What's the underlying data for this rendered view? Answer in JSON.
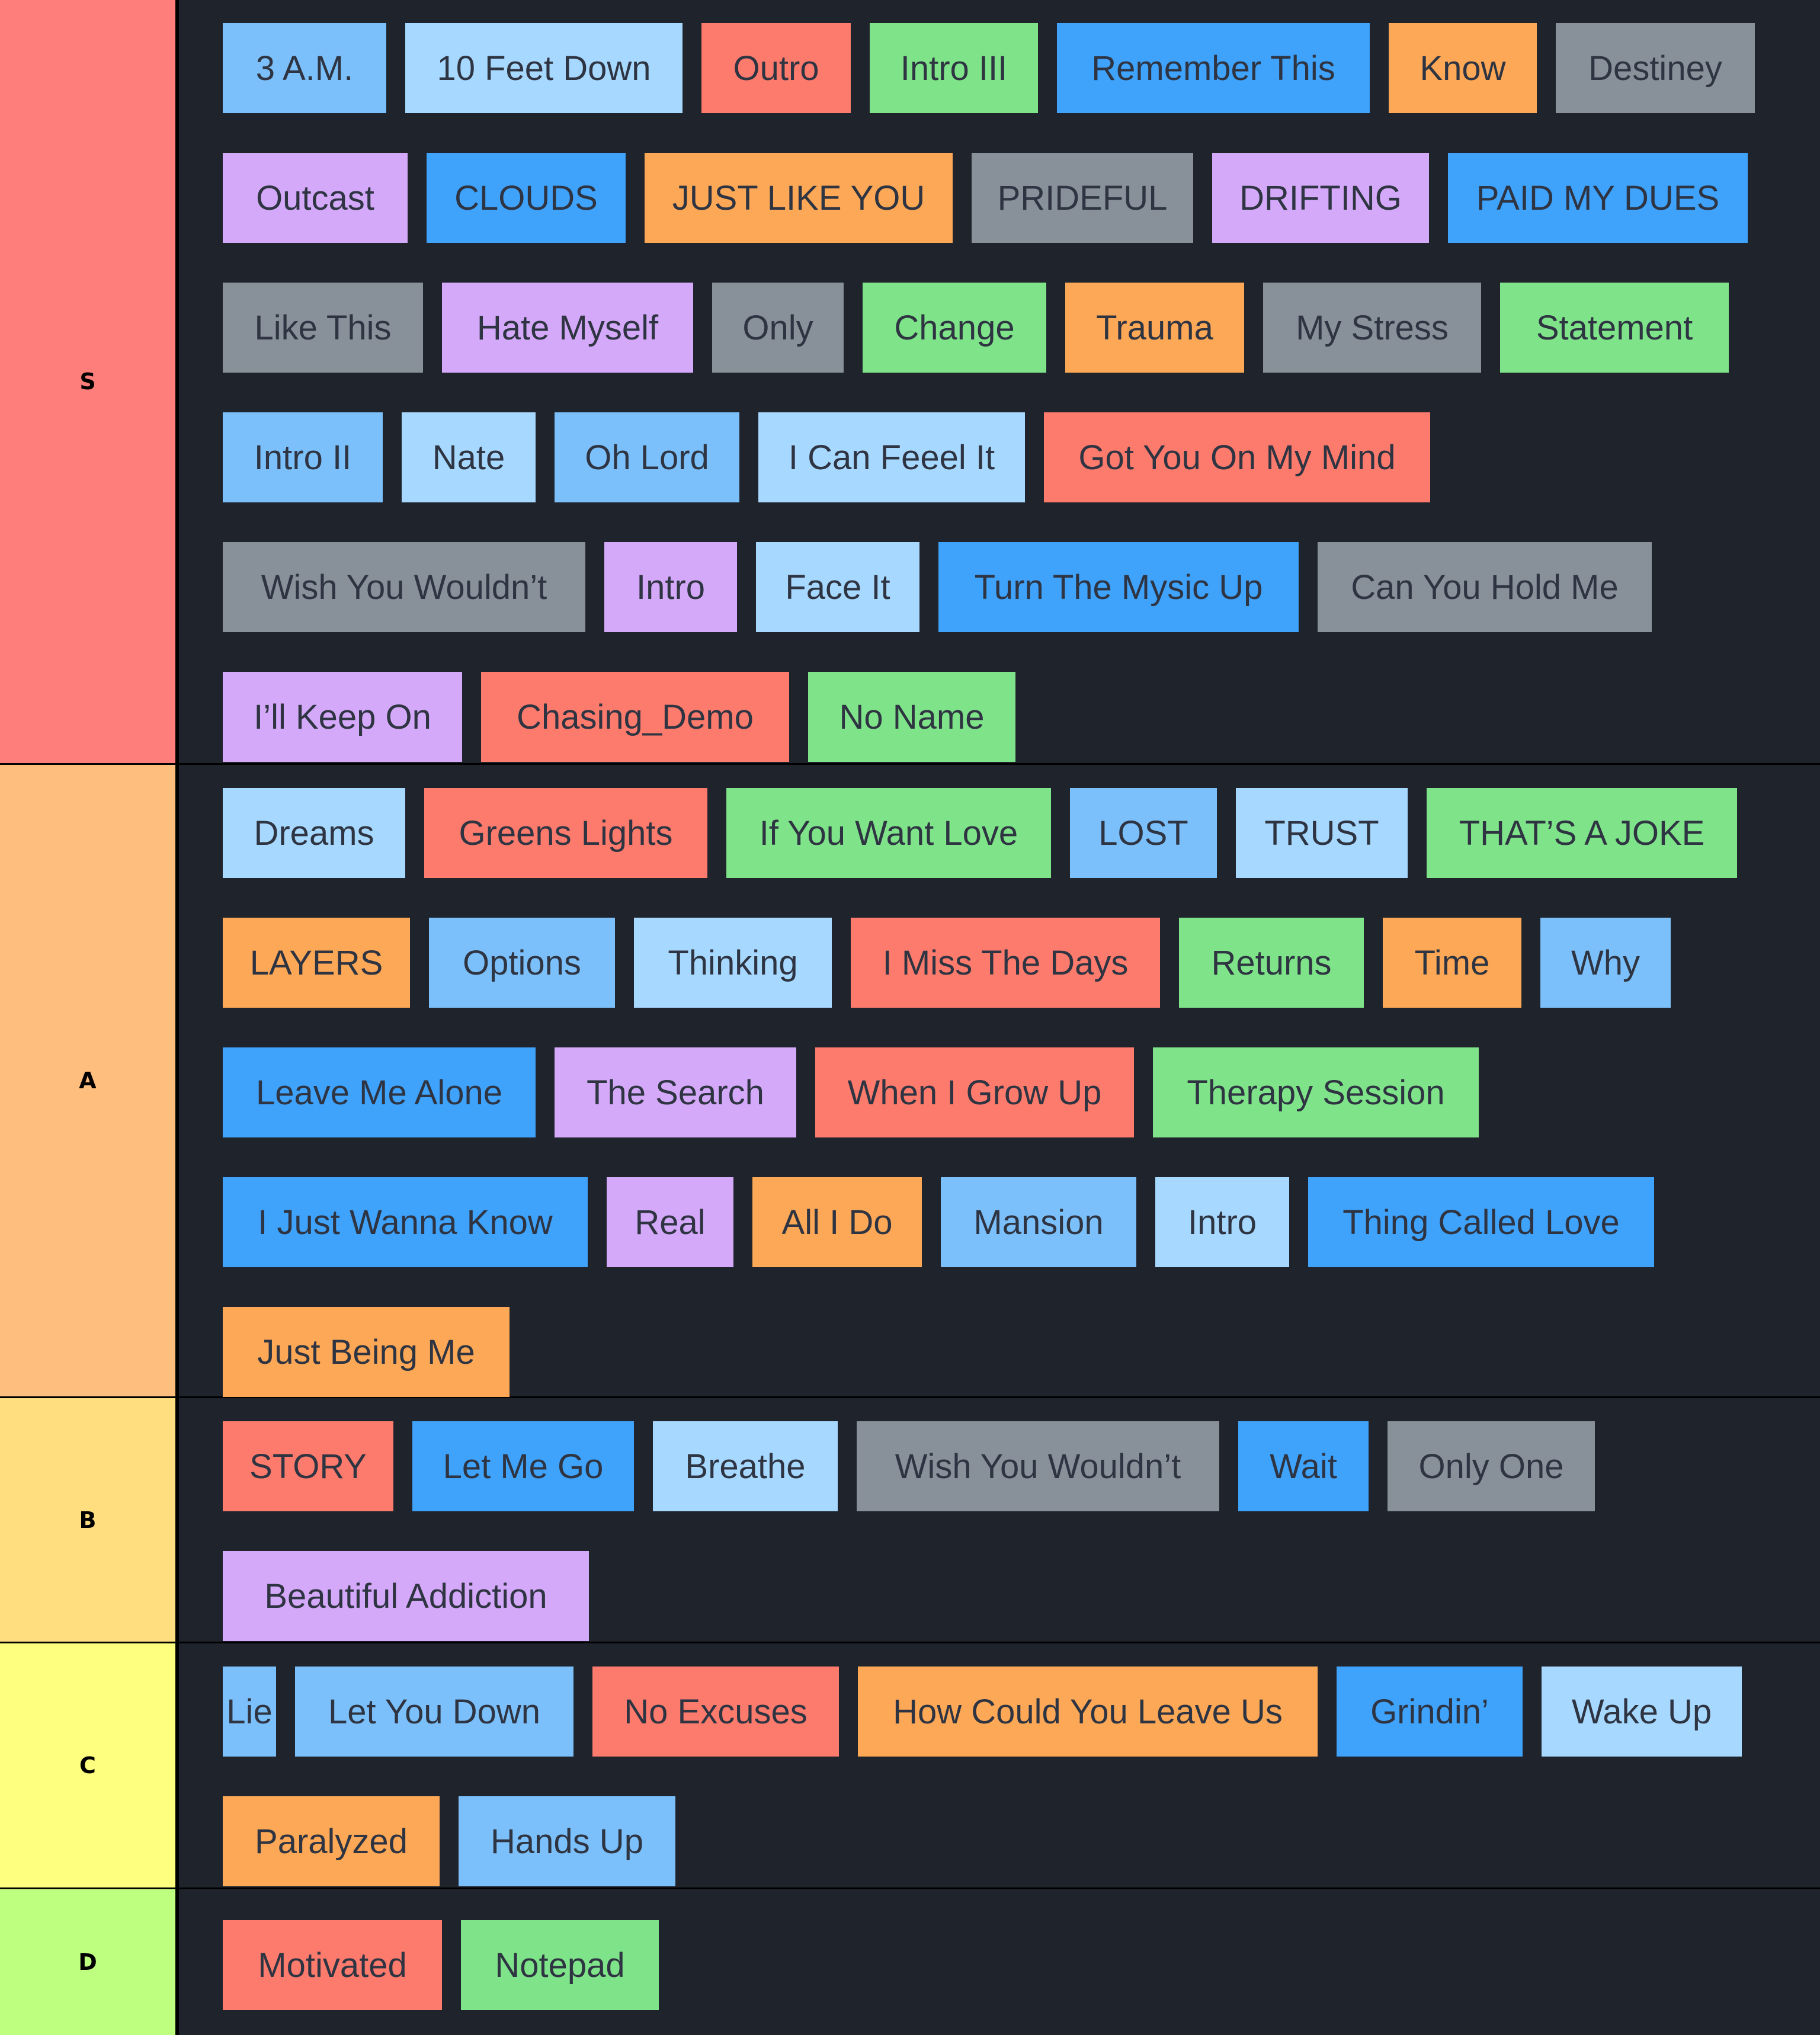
{
  "colors": {
    "red": "#fc7b6d",
    "light_blue": "#a7d8ff",
    "mid_blue": "#7cc0fb",
    "blue": "#3fa2fb",
    "green": "#7fe389",
    "orange": "#fda856",
    "gray": "#889099",
    "purple": "#d5a9f9"
  },
  "tiers": [
    {
      "label": "S",
      "color": "#fd7e7b",
      "items": [
        {
          "text": "3 A.M.",
          "color": "mid_blue"
        },
        {
          "text": "10 Feet Down",
          "color": "light_blue"
        },
        {
          "text": "Outro",
          "color": "red"
        },
        {
          "text": "Intro III",
          "color": "green"
        },
        {
          "text": "Remember This",
          "color": "blue"
        },
        {
          "text": "Know",
          "color": "orange"
        },
        {
          "text": "Destiney",
          "color": "gray"
        },
        {
          "text": "Outcast",
          "color": "purple"
        },
        {
          "text": "CLOUDS",
          "color": "blue"
        },
        {
          "text": "JUST LIKE YOU",
          "color": "orange"
        },
        {
          "text": "PRIDEFUL",
          "color": "gray"
        },
        {
          "text": "DRIFTING",
          "color": "purple"
        },
        {
          "text": "PAID MY DUES",
          "color": "blue"
        },
        {
          "text": "Like This",
          "color": "gray"
        },
        {
          "text": "Hate Myself",
          "color": "purple"
        },
        {
          "text": "Only",
          "color": "gray"
        },
        {
          "text": "Change",
          "color": "green"
        },
        {
          "text": "Trauma",
          "color": "orange"
        },
        {
          "text": "My Stress",
          "color": "gray"
        },
        {
          "text": "Statement",
          "color": "green"
        },
        {
          "text": "Intro II",
          "color": "mid_blue"
        },
        {
          "text": "Nate",
          "color": "light_blue"
        },
        {
          "text": "Oh Lord",
          "color": "mid_blue"
        },
        {
          "text": "I Can Feeel It",
          "color": "light_blue"
        },
        {
          "text": "Got You On My Mind",
          "color": "red"
        },
        {
          "text": "Wish You Wouldn’t",
          "color": "gray"
        },
        {
          "text": "Intro",
          "color": "purple"
        },
        {
          "text": "Face It",
          "color": "light_blue"
        },
        {
          "text": "Turn The Mysic Up",
          "color": "blue"
        },
        {
          "text": "Can You Hold Me",
          "color": "gray"
        },
        {
          "text": "I’ll Keep On",
          "color": "purple"
        },
        {
          "text": "Chasing_Demo",
          "color": "red"
        },
        {
          "text": "No Name",
          "color": "green"
        }
      ]
    },
    {
      "label": "A",
      "color": "#febe7e",
      "items": [
        {
          "text": "Dreams",
          "color": "light_blue"
        },
        {
          "text": "Greens Lights",
          "color": "red"
        },
        {
          "text": "If You Want Love",
          "color": "green"
        },
        {
          "text": "LOST",
          "color": "mid_blue"
        },
        {
          "text": "TRUST",
          "color": "light_blue"
        },
        {
          "text": "THAT’S A JOKE",
          "color": "green"
        },
        {
          "text": "LAYERS",
          "color": "orange"
        },
        {
          "text": "Options",
          "color": "mid_blue"
        },
        {
          "text": "Thinking",
          "color": "light_blue"
        },
        {
          "text": "I Miss The Days",
          "color": "red"
        },
        {
          "text": "Returns",
          "color": "green"
        },
        {
          "text": "Time",
          "color": "orange"
        },
        {
          "text": "Why",
          "color": "mid_blue"
        },
        {
          "text": "Leave Me Alone",
          "color": "blue"
        },
        {
          "text": "The Search",
          "color": "purple"
        },
        {
          "text": "When I Grow Up",
          "color": "red"
        },
        {
          "text": "Therapy Session",
          "color": "green"
        },
        {
          "text": "I Just Wanna Know",
          "color": "blue"
        },
        {
          "text": "Real",
          "color": "purple"
        },
        {
          "text": "All I Do",
          "color": "orange"
        },
        {
          "text": "Mansion",
          "color": "mid_blue"
        },
        {
          "text": "Intro",
          "color": "light_blue"
        },
        {
          "text": "Thing Called Love",
          "color": "blue"
        },
        {
          "text": "Just Being Me",
          "color": "orange"
        }
      ]
    },
    {
      "label": "B",
      "color": "#fede7f",
      "items": [
        {
          "text": "STORY",
          "color": "red"
        },
        {
          "text": "Let Me Go",
          "color": "blue"
        },
        {
          "text": "Breathe",
          "color": "light_blue"
        },
        {
          "text": "Wish You Wouldn’t",
          "color": "gray"
        },
        {
          "text": "Wait",
          "color": "blue"
        },
        {
          "text": "Only One",
          "color": "gray"
        },
        {
          "text": "Beautiful Addiction",
          "color": "purple"
        }
      ]
    },
    {
      "label": "C",
      "color": "#fefe7f",
      "items": [
        {
          "text": "Lie",
          "color": "mid_blue"
        },
        {
          "text": "Let You Down",
          "color": "mid_blue"
        },
        {
          "text": "No Excuses",
          "color": "red"
        },
        {
          "text": "How Could You Leave Us",
          "color": "orange"
        },
        {
          "text": "Grindin’",
          "color": "blue"
        },
        {
          "text": "Wake Up",
          "color": "light_blue"
        },
        {
          "text": "Paralyzed",
          "color": "orange"
        },
        {
          "text": "Hands Up",
          "color": "mid_blue"
        }
      ]
    },
    {
      "label": "D",
      "color": "#bfff7f",
      "items": [
        {
          "text": "Motivated",
          "color": "red"
        },
        {
          "text": "Notepad",
          "color": "green"
        }
      ]
    }
  ]
}
